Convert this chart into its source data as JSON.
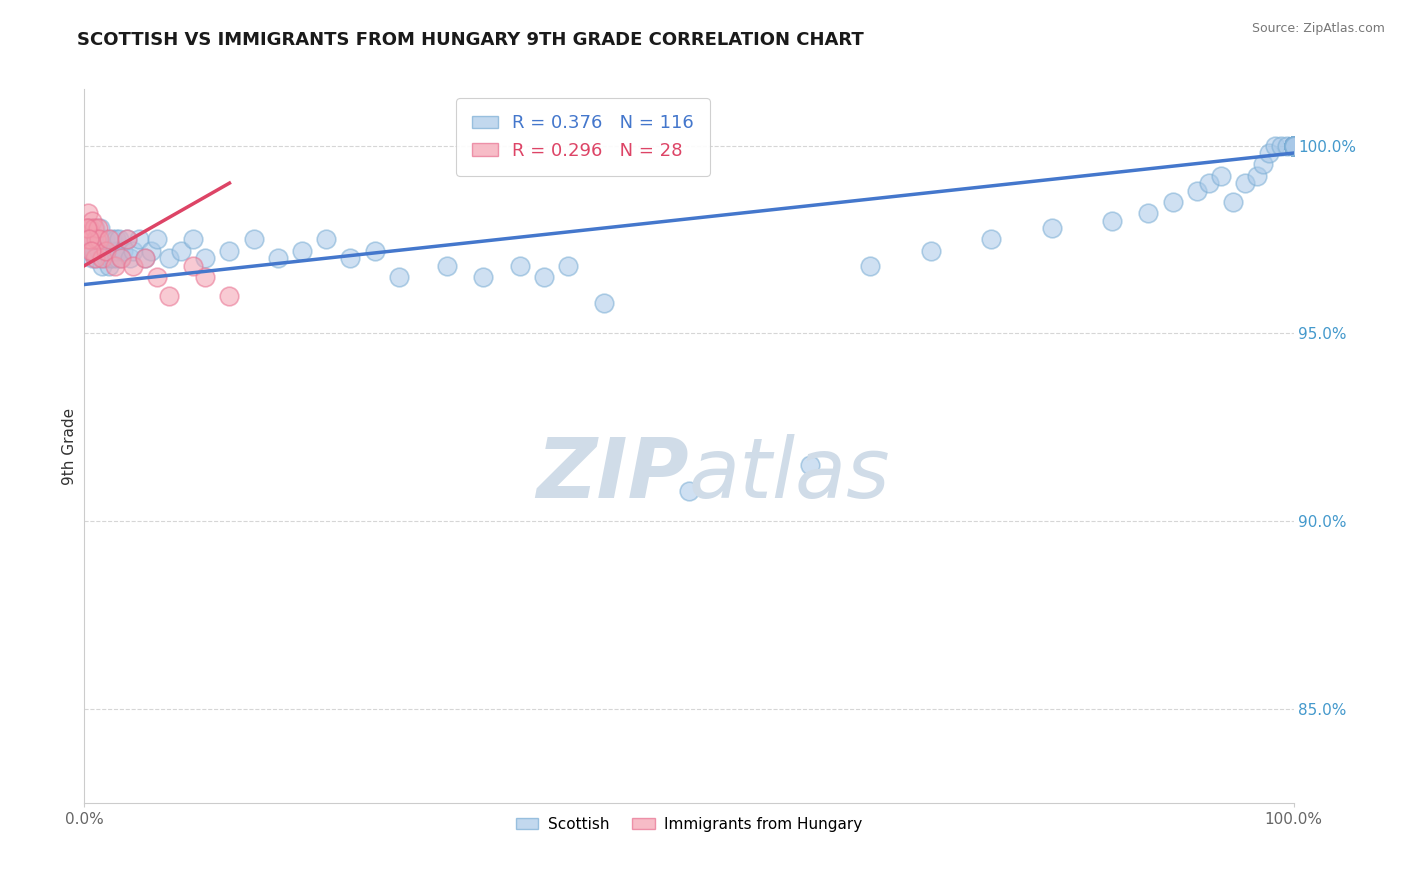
{
  "title": "SCOTTISH VS IMMIGRANTS FROM HUNGARY 9TH GRADE CORRELATION CHART",
  "source": "Source: ZipAtlas.com",
  "ylabel": "9th Grade",
  "yticks": [
    85.0,
    90.0,
    95.0,
    100.0
  ],
  "xlim": [
    0.0,
    100.0
  ],
  "ylim": [
    82.5,
    101.5
  ],
  "blue_R": 0.376,
  "blue_N": 116,
  "pink_R": 0.296,
  "pink_N": 28,
  "blue_color": "#A8C8E8",
  "pink_color": "#F4A0B0",
  "blue_edge_color": "#7AADD4",
  "pink_edge_color": "#E87090",
  "blue_line_color": "#4477CC",
  "pink_line_color": "#DD4466",
  "watermark_color": "#D0DCE8",
  "legend_label_blue": "Scottish",
  "legend_label_pink": "Immigrants from Hungary",
  "blue_scatter_x": [
    0.2,
    0.3,
    0.4,
    0.5,
    0.6,
    0.7,
    0.8,
    0.9,
    1.0,
    1.1,
    1.2,
    1.3,
    1.4,
    1.5,
    1.6,
    1.7,
    1.8,
    1.9,
    2.0,
    2.1,
    2.2,
    2.3,
    2.4,
    2.5,
    2.6,
    2.7,
    2.8,
    2.9,
    3.0,
    3.2,
    3.5,
    3.8,
    4.0,
    4.5,
    5.0,
    5.5,
    6.0,
    7.0,
    8.0,
    9.0,
    10.0,
    12.0,
    14.0,
    16.0,
    18.0,
    20.0,
    22.0,
    24.0,
    26.0,
    30.0,
    33.0,
    36.0,
    38.0,
    40.0,
    43.0,
    50.0,
    60.0,
    65.0,
    70.0,
    75.0,
    80.0,
    85.0,
    88.0,
    90.0,
    92.0,
    93.0,
    94.0,
    95.0,
    96.0,
    97.0,
    97.5,
    98.0,
    98.5,
    99.0,
    99.5,
    100.0,
    100.0,
    100.0,
    100.0,
    100.0,
    100.0,
    100.0,
    100.0,
    100.0,
    100.0,
    100.0,
    100.0,
    100.0,
    100.0,
    100.0,
    100.0,
    100.0,
    100.0,
    100.0,
    100.0,
    100.0,
    100.0,
    100.0,
    100.0,
    100.0,
    100.0,
    100.0,
    100.0,
    100.0,
    100.0,
    100.0,
    100.0,
    100.0,
    100.0,
    100.0,
    100.0,
    100.0
  ],
  "blue_scatter_y": [
    97.8,
    97.5,
    97.2,
    97.8,
    97.0,
    97.5,
    97.2,
    97.8,
    97.0,
    97.5,
    97.2,
    97.8,
    97.0,
    96.8,
    97.2,
    97.5,
    97.0,
    97.2,
    96.8,
    97.0,
    97.2,
    97.5,
    97.0,
    97.2,
    97.5,
    97.0,
    97.2,
    97.5,
    97.0,
    97.2,
    97.5,
    97.0,
    97.2,
    97.5,
    97.0,
    97.2,
    97.5,
    97.0,
    97.2,
    97.5,
    97.0,
    97.2,
    97.5,
    97.0,
    97.2,
    97.5,
    97.0,
    97.2,
    96.5,
    96.8,
    96.5,
    96.8,
    96.5,
    96.8,
    95.8,
    90.8,
    91.5,
    96.8,
    97.2,
    97.5,
    97.8,
    98.0,
    98.2,
    98.5,
    98.8,
    99.0,
    99.2,
    98.5,
    99.0,
    99.2,
    99.5,
    99.8,
    100.0,
    100.0,
    100.0,
    100.0,
    100.0,
    100.0,
    100.0,
    100.0,
    100.0,
    100.0,
    100.0,
    100.0,
    100.0,
    100.0,
    100.0,
    100.0,
    100.0,
    100.0,
    100.0,
    100.0,
    100.0,
    100.0,
    100.0,
    100.0,
    100.0,
    100.0,
    100.0,
    100.0,
    100.0,
    100.0,
    100.0,
    100.0,
    100.0,
    100.0,
    100.0,
    100.0,
    100.0,
    100.0,
    100.0,
    100.0
  ],
  "pink_scatter_x": [
    0.1,
    0.2,
    0.3,
    0.4,
    0.5,
    0.6,
    0.7,
    0.8,
    0.9,
    1.0,
    1.1,
    1.2,
    1.5,
    1.8,
    2.0,
    2.5,
    3.0,
    3.5,
    4.0,
    5.0,
    6.0,
    7.0,
    9.0,
    10.0,
    12.0,
    0.25,
    0.35,
    0.55
  ],
  "pink_scatter_y": [
    97.8,
    97.5,
    98.2,
    97.8,
    97.5,
    98.0,
    97.2,
    97.8,
    97.0,
    97.5,
    97.8,
    97.5,
    97.0,
    97.2,
    97.5,
    96.8,
    97.0,
    97.5,
    96.8,
    97.0,
    96.5,
    96.0,
    96.8,
    96.5,
    96.0,
    97.8,
    97.5,
    97.2
  ],
  "blue_trend_x0": 0,
  "blue_trend_x1": 100,
  "blue_trend_y0": 96.3,
  "blue_trend_y1": 99.8,
  "pink_trend_x0": 0,
  "pink_trend_x1": 12,
  "pink_trend_y0": 96.8,
  "pink_trend_y1": 99.0
}
